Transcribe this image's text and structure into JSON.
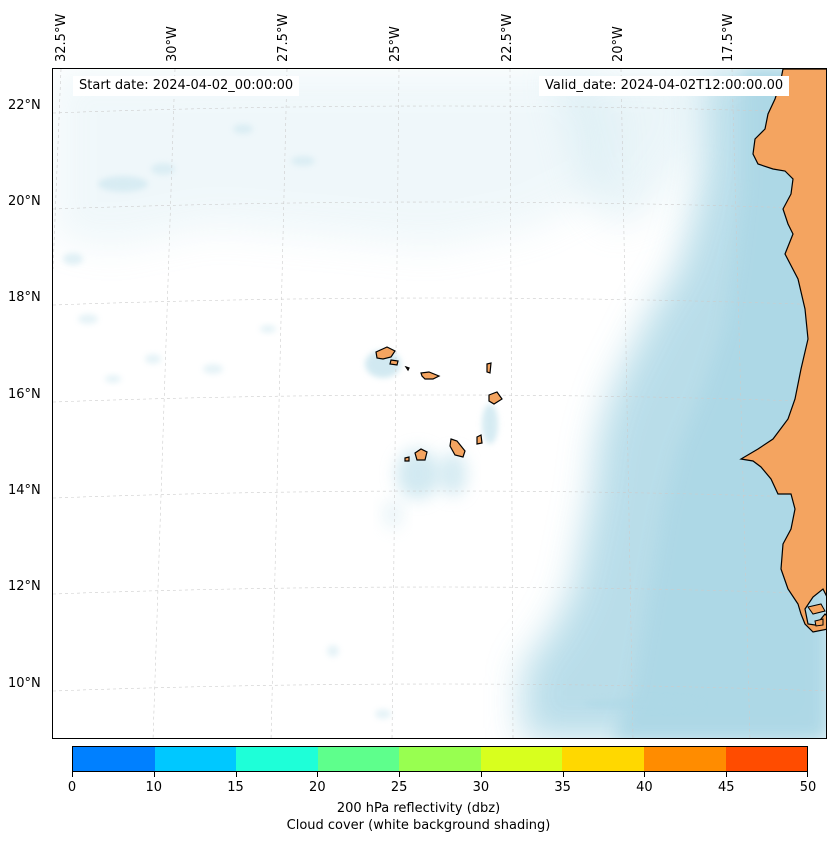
{
  "header": {
    "start_date": "Start date: 2024-04-02_00:00:00",
    "valid_date": "Valid_date: 2024-04-02T12:00:00.00"
  },
  "longitude_labels": [
    "32.5°W",
    "30°W",
    "27.5°W",
    "25°W",
    "22.5°W",
    "20°W",
    "17.5°W"
  ],
  "latitude_labels": [
    "22°N",
    "20°N",
    "18°N",
    "16°N",
    "14°N",
    "12°N",
    "10°N"
  ],
  "legend": {
    "title": "200 hPa reflectivity (dbz)",
    "subtitle": "Cloud cover (white background shading)",
    "ticks": [
      "0",
      "10",
      "15",
      "20",
      "25",
      "30",
      "35",
      "40",
      "45",
      "50"
    ],
    "colors": [
      "#0080ff",
      "#00c8ff",
      "#1effd8",
      "#5eff8c",
      "#98ff50",
      "#d8ff1e",
      "#ffd800",
      "#ff8c00",
      "#ff4c00"
    ]
  },
  "colors": {
    "land": "#f4a460",
    "cloud": "#add8e6",
    "gridline": "#cccccc"
  }
}
